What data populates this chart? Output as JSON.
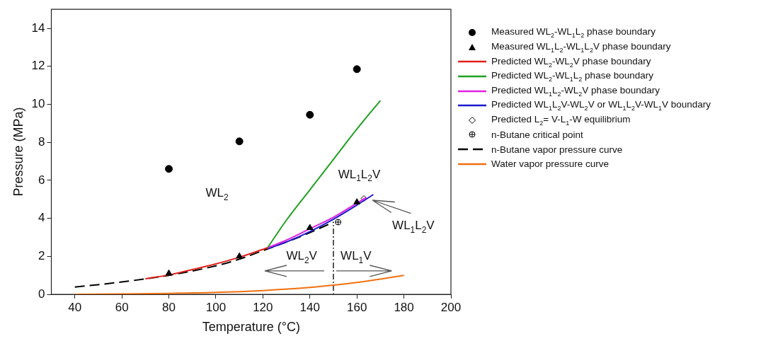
{
  "chart_data": {
    "type": "line",
    "xlabel": "Temperature (°C)",
    "ylabel": "Pressure (MPa)",
    "xlim": [
      30,
      200
    ],
    "xticks": [
      40,
      60,
      80,
      100,
      120,
      140,
      160,
      180,
      200
    ],
    "ylim": [
      0,
      15
    ],
    "yticks": [
      0,
      2,
      4,
      6,
      8,
      10,
      12,
      14
    ],
    "grid": false,
    "legend": "right",
    "line_style": "solid",
    "marker": "none",
    "series": [
      {
        "type": "scatter",
        "marker": "circle",
        "name": "Measured WL$_{2}$-WL$_{1}$L$_{2}$ phase boundary",
        "color": "#000000",
        "x": [
          80,
          110,
          140,
          160
        ],
        "values": [
          6.6,
          8.05,
          9.45,
          11.85
        ]
      },
      {
        "type": "scatter",
        "marker": "triangle",
        "name": "Measured WL$_{1}$L$_{2}$-WL$_{1}$L$_{2}$V phase boundary",
        "color": "#000000",
        "x": [
          80,
          110,
          140,
          160
        ],
        "values": [
          1.1,
          2.0,
          3.5,
          4.85
        ]
      },
      {
        "name": "Predicted WL$_{2}$-WL$_{2}$V phase boundary",
        "color": "#e0201b",
        "x": [
          70,
          80,
          90,
          100,
          110,
          122
        ],
        "values": [
          0.82,
          1.02,
          1.3,
          1.6,
          1.95,
          2.45
        ]
      },
      {
        "name": "Predicted WL$_{2}$-WL$_{1}$L$_{2}$ phase boundary",
        "color": "#22a022",
        "x": [
          122,
          130,
          140,
          150,
          160,
          170
        ],
        "values": [
          2.45,
          3.9,
          5.5,
          7.1,
          8.7,
          10.2
        ]
      },
      {
        "name": "Predicted WL$_{1}$L$_{2}$-WL$_{2}$V phase boundary",
        "color": "#e020e0",
        "x": [
          122,
          130,
          140,
          150,
          160,
          164
        ],
        "values": [
          2.45,
          2.85,
          3.45,
          4.05,
          4.8,
          5.1
        ]
      },
      {
        "name": "Predicted WL$_{1}$L$_{2}$V-WL$_{2}$V or WL$_{1}$L$_{2}$V-WL$_{1}$V boundary",
        "color": "#1a1acc",
        "x": [
          122,
          130,
          140,
          150,
          160,
          167
        ],
        "values": [
          2.4,
          2.75,
          3.3,
          3.95,
          4.7,
          5.25
        ]
      },
      {
        "type": "scatter",
        "marker": "diamond",
        "name": "Predicted L$_{2}$= V-L$_{1}$-W equilibrium",
        "color": "#000000",
        "x": [
          163
        ],
        "values": [
          5.05
        ]
      },
      {
        "type": "scatter",
        "marker": "cross",
        "name": "n-Butane critical point",
        "color": "#000000",
        "x": [
          152
        ],
        "values": [
          3.8
        ]
      },
      {
        "line_style": "dashed",
        "name": "n-Butane vapor pressure curve",
        "color": "#000000",
        "x": [
          40,
          60,
          80,
          100,
          110,
          120,
          130,
          140,
          150
        ],
        "values": [
          0.38,
          0.65,
          1.0,
          1.5,
          1.85,
          2.3,
          2.75,
          3.25,
          3.8
        ]
      },
      {
        "name": "Water vapor pressure curve",
        "color": "#f07010",
        "x": [
          40,
          60,
          80,
          100,
          120,
          140,
          150,
          160,
          170,
          180
        ],
        "values": [
          0,
          0.02,
          0.05,
          0.1,
          0.2,
          0.36,
          0.48,
          0.62,
          0.8,
          1.0
        ]
      },
      {
        "line_style": "dotted",
        "color": "#555555",
        "x": [
          150,
          150
        ],
        "values": [
          0,
          3.8
        ]
      }
    ],
    "annotations": [
      "WL$_{2}$",
      "WL$_{1}$L$_{2}$V",
      "WL$_{1}$L$_{2}$V",
      "WL$_{2}$V",
      "WL$_{1}$V"
    ]
  }
}
